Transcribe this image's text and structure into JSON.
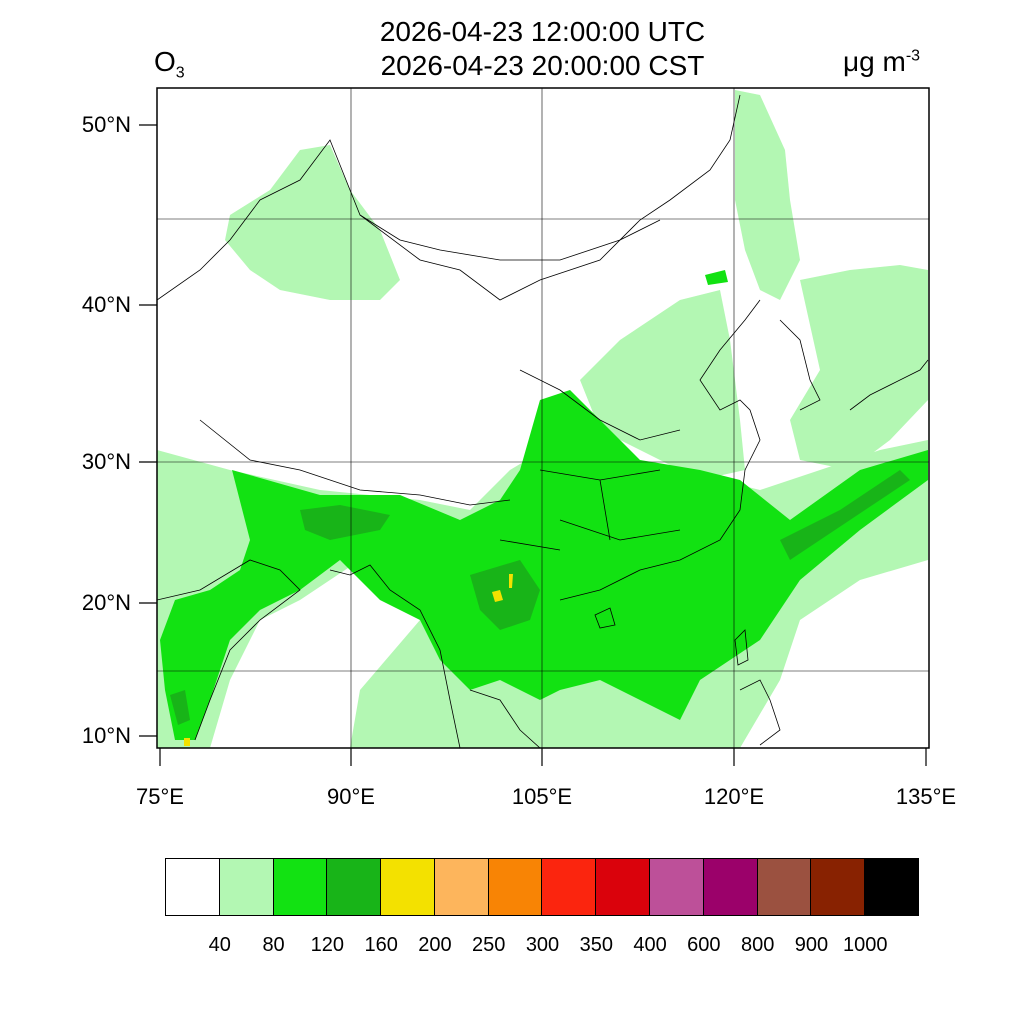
{
  "title": {
    "utc": "2026-04-23 12:00:00 UTC",
    "cst": "2026-04-23 20:00:00 CST"
  },
  "species": {
    "main": "O",
    "sub": "3"
  },
  "unit": {
    "main": "μg m",
    "sup": "-3"
  },
  "axes": {
    "lon_ticks": [
      "75°E",
      "90°E",
      "105°E",
      "120°E",
      "135°E"
    ],
    "lat_ticks": [
      "50°N",
      "40°N",
      "30°N",
      "20°N",
      "10°N"
    ],
    "lon_range": [
      75,
      135
    ],
    "lat_range": [
      9,
      52
    ],
    "grid": true
  },
  "colorbar": {
    "colors": [
      "#ffffff",
      "#b3f7b3",
      "#12e212",
      "#18b418",
      "#f3e100",
      "#fdb55c",
      "#f88405",
      "#fb250e",
      "#da020c",
      "#bd5099",
      "#9b016a",
      "#9b5140",
      "#882201",
      "#000000"
    ],
    "labels": [
      "40",
      "80",
      "120",
      "160",
      "200",
      "250",
      "300",
      "350",
      "400",
      "600",
      "800",
      "900",
      "1000"
    ]
  },
  "field_colors": {
    "land": "#ffffff",
    "band_40_80": "#b3f7b3",
    "band_80_120": "#12e212",
    "band_120_160": "#18b418",
    "band_160_200": "#f3e100",
    "boundary": "#000000"
  }
}
